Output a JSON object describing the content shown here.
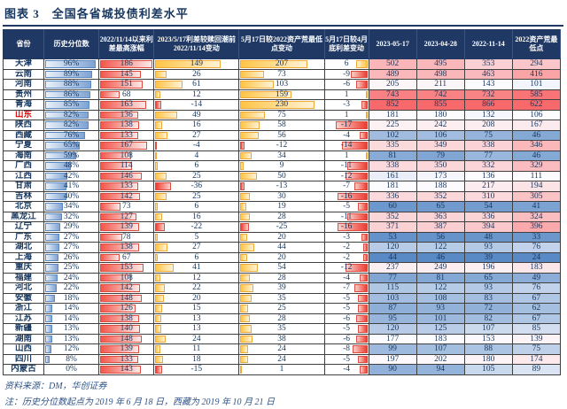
{
  "title": "图表 3　全国各省城投债利差水平",
  "source": "资料来源：DM，华创证券",
  "note": "注：历史分位数起点为 2019 年 6 月 18 日，西藏为 2019 年 10 月 21 日",
  "columns": [
    "省份",
    "历史分位数",
    "2022/11/14以来利差最高涨幅",
    "2023/5/17利差较赎回潮前2022/11/14变动",
    "5月17日较2022资产荒最低点变动",
    "5月17日较4月底利差变动",
    "2023-05-17",
    "2023-04-28",
    "2022-11-14",
    "2022资产荒最低点"
  ],
  "colors": {
    "header_bg": "#1F3864",
    "header_text": "#FFFFFF",
    "title_text": "#17375E",
    "body_text": "#17375E",
    "highlight_text": "#E60000",
    "bar_blue": "#5A8AC6",
    "bar_red": "#E8584C",
    "bar_gold": "#F5B13D",
    "heat_low": "#5A8AC6",
    "heat_mid": "#FCFCFF",
    "heat_high": "#F8696B"
  },
  "chart_data": {
    "type": "table",
    "title": "全国各省城投债利差水平",
    "rows": [
      {
        "province": "天津",
        "highlight": false,
        "percentile": 96,
        "percentile_label": "96%",
        "rise": 186,
        "chg_vs_1114": 149,
        "chg_vs_low": 207,
        "chg_vs_apr": 6,
        "v0517": 502,
        "v0428": 495,
        "v1114": 353,
        "vlow": 294
      },
      {
        "province": "云南",
        "highlight": false,
        "percentile": 89,
        "percentile_label": "89%",
        "rise": 145,
        "chg_vs_1114": 26,
        "chg_vs_low": 73,
        "chg_vs_apr": -9,
        "v0517": 489,
        "v0428": 498,
        "v1114": 463,
        "vlow": 416
      },
      {
        "province": "河南",
        "highlight": false,
        "percentile": 88,
        "percentile_label": "88%",
        "rise": 151,
        "chg_vs_1114": 61,
        "chg_vs_low": 103,
        "chg_vs_apr": -6,
        "v0517": 205,
        "v0428": 211,
        "v1114": 143,
        "vlow": 101
      },
      {
        "province": "贵州",
        "highlight": false,
        "percentile": 86,
        "percentile_label": "86%",
        "rise": 68,
        "chg_vs_1114": 12,
        "chg_vs_low": 159,
        "chg_vs_apr": 1,
        "v0517": 743,
        "v0428": 742,
        "v1114": 732,
        "vlow": 585
      },
      {
        "province": "青海",
        "highlight": false,
        "percentile": 85,
        "percentile_label": "85%",
        "rise": 163,
        "chg_vs_1114": -14,
        "chg_vs_low": 230,
        "chg_vs_apr": -3,
        "v0517": 852,
        "v0428": 855,
        "v1114": 866,
        "vlow": 622
      },
      {
        "province": "山东",
        "highlight": true,
        "percentile": 82,
        "percentile_label": "82%",
        "rise": 136,
        "chg_vs_1114": 49,
        "chg_vs_low": 75,
        "chg_vs_apr": 1,
        "v0517": 181,
        "v0428": 180,
        "v1114": 132,
        "vlow": 106
      },
      {
        "province": "陕西",
        "highlight": false,
        "percentile": 82,
        "percentile_label": "82%",
        "rise": 138,
        "chg_vs_1114": 16,
        "chg_vs_low": 58,
        "chg_vs_apr": -17,
        "v0517": 225,
        "v0428": 242,
        "v1114": 208,
        "vlow": 167
      },
      {
        "province": "西藏",
        "highlight": false,
        "percentile": 76,
        "percentile_label": "76%",
        "rise": 133,
        "chg_vs_1114": 27,
        "chg_vs_low": 56,
        "chg_vs_apr": -4,
        "v0517": 102,
        "v0428": 106,
        "v1114": 75,
        "vlow": 46
      },
      {
        "province": "宁夏",
        "highlight": false,
        "percentile": 65,
        "percentile_label": "65%",
        "rise": 167,
        "chg_vs_1114": -4,
        "chg_vs_low": -12,
        "chg_vs_apr": -14,
        "v0517": 335,
        "v0428": 349,
        "v1114": 338,
        "vlow": 346
      },
      {
        "province": "海南",
        "highlight": false,
        "percentile": 59,
        "percentile_label": "59%",
        "rise": 108,
        "chg_vs_1114": 4,
        "chg_vs_low": 34,
        "chg_vs_apr": 1,
        "v0517": 81,
        "v0428": 79,
        "v1114": 77,
        "vlow": 46
      },
      {
        "province": "广西",
        "highlight": false,
        "percentile": 48,
        "percentile_label": "48%",
        "rise": 114,
        "chg_vs_1114": 6,
        "chg_vs_low": 9,
        "chg_vs_apr": -11,
        "v0517": 338,
        "v0428": 350,
        "v1114": 332,
        "vlow": 329
      },
      {
        "province": "江西",
        "highlight": false,
        "percentile": 42,
        "percentile_label": "42%",
        "rise": 146,
        "chg_vs_1114": 25,
        "chg_vs_low": 50,
        "chg_vs_apr": -12,
        "v0517": 161,
        "v0428": 173,
        "v1114": 136,
        "vlow": 111
      },
      {
        "province": "甘肃",
        "highlight": false,
        "percentile": 41,
        "percentile_label": "41%",
        "rise": 133,
        "chg_vs_1114": -36,
        "chg_vs_low": -13,
        "chg_vs_apr": -7,
        "v0517": 181,
        "v0428": 188,
        "v1114": 217,
        "vlow": 194
      },
      {
        "province": "吉林",
        "highlight": false,
        "percentile": 40,
        "percentile_label": "40%",
        "rise": 142,
        "chg_vs_1114": 25,
        "chg_vs_low": 30,
        "chg_vs_apr": -16,
        "v0517": 336,
        "v0428": 352,
        "v1114": 310,
        "vlow": 305
      },
      {
        "province": "北京",
        "highlight": false,
        "percentile": 34,
        "percentile_label": "34%",
        "rise": 73,
        "chg_vs_1114": 6,
        "chg_vs_low": 19,
        "chg_vs_apr": -5,
        "v0517": 60,
        "v0428": 65,
        "v1114": 54,
        "vlow": 41
      },
      {
        "province": "黑龙江",
        "highlight": false,
        "percentile": 32,
        "percentile_label": "32%",
        "rise": 127,
        "chg_vs_1114": 16,
        "chg_vs_low": 28,
        "chg_vs_apr": -11,
        "v0517": 352,
        "v0428": 363,
        "v1114": 336,
        "vlow": 324
      },
      {
        "province": "辽宁",
        "highlight": false,
        "percentile": 29,
        "percentile_label": "29%",
        "rise": 139,
        "chg_vs_1114": -22,
        "chg_vs_low": -25,
        "chg_vs_apr": -16,
        "v0517": 371,
        "v0428": 387,
        "v1114": 394,
        "vlow": 396
      },
      {
        "province": "广东",
        "highlight": false,
        "percentile": 27,
        "percentile_label": "27%",
        "rise": 78,
        "chg_vs_1114": 5,
        "chg_vs_low": 20,
        "chg_vs_apr": -3,
        "v0517": 53,
        "v0428": 56,
        "v1114": 48,
        "vlow": 33
      },
      {
        "province": "湖北",
        "highlight": false,
        "percentile": 27,
        "percentile_label": "27%",
        "rise": 138,
        "chg_vs_1114": 27,
        "chg_vs_low": 44,
        "chg_vs_apr": -2,
        "v0517": 120,
        "v0428": 122,
        "v1114": 93,
        "vlow": 76
      },
      {
        "province": "上海",
        "highlight": false,
        "percentile": 26,
        "percentile_label": "26%",
        "rise": 67,
        "chg_vs_1114": 6,
        "chg_vs_low": 20,
        "chg_vs_apr": -2,
        "v0517": 44,
        "v0428": 46,
        "v1114": 39,
        "vlow": 24
      },
      {
        "province": "重庆",
        "highlight": false,
        "percentile": 25,
        "percentile_label": "25%",
        "rise": 153,
        "chg_vs_1114": 41,
        "chg_vs_low": 54,
        "chg_vs_apr": -12,
        "v0517": 237,
        "v0428": 249,
        "v1114": 196,
        "vlow": 183
      },
      {
        "province": "福建",
        "highlight": false,
        "percentile": 24,
        "percentile_label": "24%",
        "rise": 108,
        "chg_vs_1114": 12,
        "chg_vs_low": 28,
        "chg_vs_apr": -4,
        "v0517": 77,
        "v0428": 81,
        "v1114": 65,
        "vlow": 49
      },
      {
        "province": "河北",
        "highlight": false,
        "percentile": 22,
        "percentile_label": "22%",
        "rise": 142,
        "chg_vs_1114": 22,
        "chg_vs_low": 39,
        "chg_vs_apr": -7,
        "v0517": 115,
        "v0428": 122,
        "v1114": 93,
        "vlow": 76
      },
      {
        "province": "安徽",
        "highlight": false,
        "percentile": 18,
        "percentile_label": "18%",
        "rise": 148,
        "chg_vs_1114": 20,
        "chg_vs_low": 35,
        "chg_vs_apr": -5,
        "v0517": 103,
        "v0428": 108,
        "v1114": 83,
        "vlow": 67
      },
      {
        "province": "浙江",
        "highlight": false,
        "percentile": 14,
        "percentile_label": "14%",
        "rise": 126,
        "chg_vs_1114": 15,
        "chg_vs_low": 25,
        "chg_vs_apr": -5,
        "v0517": 87,
        "v0428": 93,
        "v1114": 72,
        "vlow": 62
      },
      {
        "province": "江苏",
        "highlight": false,
        "percentile": 14,
        "percentile_label": "14%",
        "rise": 138,
        "chg_vs_1114": 13,
        "chg_vs_low": 28,
        "chg_vs_apr": -6,
        "v0517": 95,
        "v0428": 101,
        "v1114": 82,
        "vlow": 67
      },
      {
        "province": "新疆",
        "highlight": false,
        "percentile": 13,
        "percentile_label": "13%",
        "rise": 140,
        "chg_vs_1114": 13,
        "chg_vs_low": 35,
        "chg_vs_apr": -5,
        "v0517": 120,
        "v0428": 125,
        "v1114": 107,
        "vlow": 85
      },
      {
        "province": "湖南",
        "highlight": false,
        "percentile": 13,
        "percentile_label": "13%",
        "rise": 148,
        "chg_vs_1114": 24,
        "chg_vs_low": 38,
        "chg_vs_apr": -6,
        "v0517": 177,
        "v0428": 183,
        "v1114": 153,
        "vlow": 139
      },
      {
        "province": "山西",
        "highlight": false,
        "percentile": 12,
        "percentile_label": "12%",
        "rise": 139,
        "chg_vs_1114": 11,
        "chg_vs_low": 24,
        "chg_vs_apr": -8,
        "v0517": 99,
        "v0428": 107,
        "v1114": 88,
        "vlow": 75
      },
      {
        "province": "四川",
        "highlight": false,
        "percentile": 8,
        "percentile_label": "8%",
        "rise": 133,
        "chg_vs_1114": 18,
        "chg_vs_low": 24,
        "chg_vs_apr": -5,
        "v0517": 197,
        "v0428": 202,
        "v1114": 180,
        "vlow": 174
      },
      {
        "province": "内蒙古",
        "highlight": false,
        "percentile": 0,
        "percentile_label": "0%",
        "rise": 143,
        "chg_vs_1114": -15,
        "chg_vs_low": 1,
        "chg_vs_apr": -4,
        "v0517": 90,
        "v0428": 94,
        "v1114": 105,
        "vlow": 89
      }
    ]
  }
}
